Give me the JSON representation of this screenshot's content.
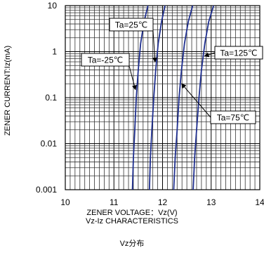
{
  "chart_data": {
    "type": "line",
    "xlabel": "ZENER VOLTAGE：Vz(V)",
    "ylabel": "ZENER CURRENT:Iz(mA)",
    "xlim": [
      10,
      14
    ],
    "ylim": [
      0.001,
      10
    ],
    "yscale": "log",
    "xticks": [
      "10",
      "11",
      "12",
      "13",
      "14"
    ],
    "yticks": [
      "10",
      "1",
      "0.1",
      "0.01",
      "0.001"
    ],
    "grid": true,
    "line_color": "#1f2f8f",
    "series": [
      {
        "name": "Ta=-25℃",
        "x": [
          11.38,
          11.4,
          11.43,
          11.46,
          11.5,
          11.55,
          11.62,
          11.7
        ],
        "y": [
          0.001,
          0.005,
          0.02,
          0.1,
          0.4,
          1.5,
          4.5,
          10
        ]
      },
      {
        "name": "Ta=25℃",
        "x": [
          11.73,
          11.75,
          11.78,
          11.82,
          11.86,
          11.91,
          11.98,
          12.05
        ],
        "y": [
          0.001,
          0.005,
          0.02,
          0.1,
          0.4,
          1.5,
          4.5,
          10
        ]
      },
      {
        "name": "Ta=75℃",
        "x": [
          12.23,
          12.26,
          12.3,
          12.34,
          12.39,
          12.45,
          12.53,
          12.62
        ],
        "y": [
          0.001,
          0.005,
          0.02,
          0.1,
          0.4,
          1.5,
          4.5,
          10
        ]
      },
      {
        "name": "Ta=125℃",
        "x": [
          12.63,
          12.66,
          12.7,
          12.75,
          12.8,
          12.87,
          12.95,
          13.05
        ],
        "y": [
          0.001,
          0.005,
          0.02,
          0.1,
          0.4,
          1.5,
          4.5,
          10
        ]
      }
    ],
    "callouts": [
      {
        "label": "Ta=25℃",
        "series": 1,
        "anchor_y": 0.6
      },
      {
        "label": "Ta=-25℃",
        "series": 0,
        "anchor_y": 0.15
      },
      {
        "label": "Ta=125℃",
        "series": 3,
        "anchor_y": 0.8
      },
      {
        "label": "Ta=75℃",
        "series": 2,
        "anchor_y": 0.2
      }
    ]
  },
  "captions": {
    "line1": "ZENER VOLTAGE：Vz(V)",
    "line2": "Vz-Iz CHARACTERISTICS",
    "line3": "Vz分布"
  }
}
